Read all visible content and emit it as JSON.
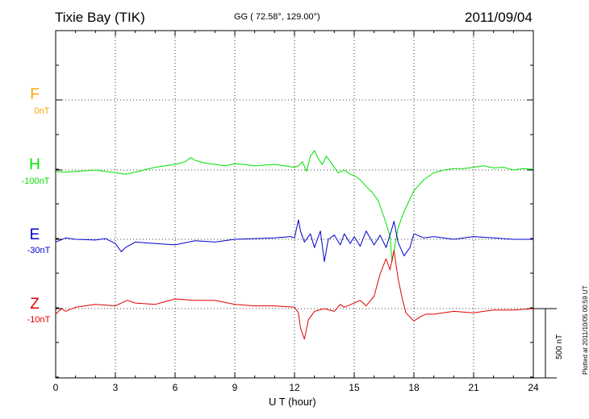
{
  "header": {
    "station": "Tixie Bay (TIK)",
    "coords": "GG ( 72.58°, 129.00°)",
    "date": "2011/09/04"
  },
  "footer": {
    "plotted": "Plotted at 2011/10/05 00:59 UT",
    "scale": "500 nT"
  },
  "colors": {
    "F": "#ffa500",
    "H": "#00e000",
    "E": "#0000cc",
    "Z": "#e00000",
    "grid": "#000000"
  },
  "chart_data": {
    "type": "line",
    "xlabel": "U T (hour)",
    "xlim": [
      0,
      24
    ],
    "x_ticks": [
      0,
      3,
      6,
      9,
      12,
      15,
      18,
      21,
      24
    ],
    "scale_bar_nT": 500,
    "series": [
      {
        "name": "F",
        "baseline_label": "0nT",
        "x": [],
        "values": []
      },
      {
        "name": "H",
        "baseline_label": "-100nT",
        "x": [
          0,
          0.5,
          1,
          2,
          3,
          3.5,
          4,
          5,
          5.5,
          6,
          6.5,
          6.8,
          7,
          7.5,
          8,
          8.5,
          9,
          9.5,
          10,
          11,
          11.5,
          12,
          12.2,
          12.4,
          12.6,
          12.8,
          13,
          13.2,
          13.4,
          13.6,
          13.8,
          14,
          14.2,
          14.5,
          14.8,
          15,
          15.3,
          15.6,
          15.9,
          16.2,
          16.5,
          16.8,
          16.9,
          17,
          17.2,
          17.5,
          18,
          18.5,
          19,
          19.5,
          20,
          20.5,
          21,
          21.5,
          22,
          22.5,
          23,
          23.5,
          24
        ],
        "values": [
          -10,
          -15,
          -10,
          0,
          -20,
          -30,
          -15,
          20,
          30,
          40,
          60,
          90,
          70,
          50,
          40,
          30,
          45,
          40,
          30,
          40,
          30,
          20,
          30,
          60,
          -10,
          100,
          140,
          80,
          40,
          100,
          60,
          20,
          -20,
          0,
          -30,
          -40,
          -70,
          -120,
          -160,
          -220,
          -340,
          -480,
          -660,
          -580,
          -420,
          -300,
          -150,
          -70,
          -20,
          0,
          10,
          10,
          20,
          30,
          15,
          20,
          0,
          10,
          5
        ]
      },
      {
        "name": "E",
        "baseline_label": "-30nT",
        "x": [
          0,
          0.5,
          1,
          2,
          2.5,
          3,
          3.3,
          3.5,
          4,
          5,
          6,
          7,
          8,
          9,
          10,
          11,
          11.8,
          12,
          12.2,
          12.3,
          12.5,
          12.8,
          13,
          13.3,
          13.5,
          13.7,
          14,
          14.3,
          14.5,
          14.8,
          15,
          15.3,
          15.6,
          16,
          16.3,
          16.6,
          16.9,
          17,
          17.2,
          17.5,
          17.8,
          18,
          18.5,
          19,
          20,
          21,
          22,
          23,
          24
        ],
        "values": [
          -20,
          10,
          0,
          -5,
          5,
          -30,
          -90,
          -60,
          -20,
          -30,
          -40,
          -10,
          -20,
          0,
          5,
          10,
          20,
          10,
          140,
          60,
          -20,
          40,
          -60,
          60,
          -160,
          0,
          30,
          -40,
          40,
          -30,
          20,
          -50,
          60,
          -40,
          30,
          -60,
          80,
          130,
          -20,
          -120,
          -60,
          40,
          10,
          20,
          0,
          20,
          10,
          0,
          0
        ]
      },
      {
        "name": "Z",
        "baseline_label": "-10nT",
        "x": [
          0,
          0.3,
          0.5,
          1,
          2,
          3,
          3.3,
          3.6,
          4,
          5,
          5.5,
          6,
          7,
          8,
          9,
          10,
          11,
          12,
          12.2,
          12.3,
          12.5,
          12.7,
          13,
          13.5,
          14,
          14.3,
          14.5,
          15,
          15.3,
          15.6,
          16,
          16.3,
          16.6,
          16.8,
          17,
          17.2,
          17.4,
          17.6,
          18,
          18.3,
          18.6,
          19,
          20,
          21,
          21.5,
          22,
          23,
          24
        ],
        "values": [
          -40,
          0,
          -20,
          10,
          30,
          20,
          40,
          60,
          40,
          30,
          50,
          70,
          60,
          60,
          30,
          20,
          20,
          10,
          -30,
          -140,
          -220,
          -80,
          -20,
          0,
          -20,
          30,
          10,
          40,
          60,
          20,
          90,
          250,
          360,
          280,
          420,
          220,
          80,
          -30,
          -90,
          -60,
          -40,
          -40,
          -20,
          -30,
          -20,
          -10,
          -10,
          0
        ]
      }
    ]
  }
}
